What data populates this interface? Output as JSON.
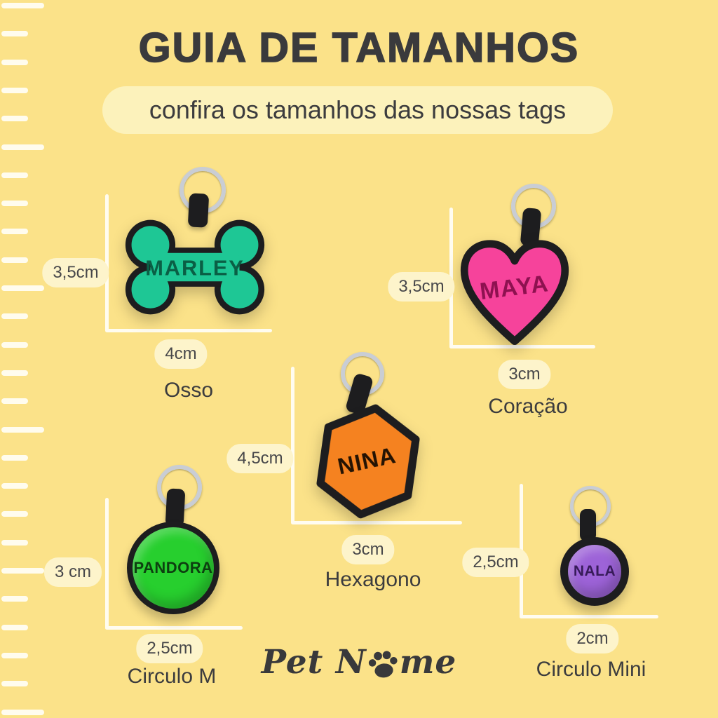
{
  "title": "GUIA DE TAMANHOS",
  "subtitle": "confira os tamanhos das nossas tags",
  "ruler": {
    "icon": "ruler-ticks",
    "tick_count": 26,
    "long_every": 5
  },
  "tags": [
    {
      "pet_name": "MARLEY",
      "shape_label": "Osso",
      "height_label": "3,5cm",
      "width_label": "4cm",
      "fill": "#1ec795",
      "name_color": "#0a5f45",
      "icon": "bone-tag"
    },
    {
      "pet_name": "MAYA",
      "shape_label": "Coração",
      "height_label": "3,5cm",
      "width_label": "3cm",
      "fill": "#f6439b",
      "name_color": "#8e1150",
      "icon": "heart-tag"
    },
    {
      "pet_name": "NINA",
      "shape_label": "Hexagono",
      "height_label": "4,5cm",
      "width_label": "3cm",
      "fill": "#f58220",
      "name_color": "#241303",
      "icon": "hexagon-tag"
    },
    {
      "pet_name": "PANDORA",
      "shape_label": "Circulo M",
      "height_label": "3 cm",
      "width_label": "2,5cm",
      "fill": "#27cf2e",
      "name_color": "#0d3f10",
      "icon": "circle-tag"
    },
    {
      "pet_name": "NALA",
      "shape_label": "Circulo Mini",
      "height_label": "2,5cm",
      "width_label": "2cm",
      "fill": "#9d63d8",
      "name_color": "#371b59",
      "icon": "circle-tag"
    }
  ],
  "brand": {
    "name_part1": "Pet N",
    "name_part2": "me",
    "paw_icon": "paw-print"
  },
  "colors": {
    "background": "#fbe289",
    "title": "#3a3a3c",
    "subtitle_pill": "#fcf2bb",
    "pill_bg": "#fdf4cb",
    "pill_text": "#47474a",
    "label_text": "#3c3c3e",
    "bracket": "#fffcf0",
    "ruler_tick": "#fffdf3",
    "outline": "#1d1d1f",
    "ring": "#c9cdd4",
    "logo": "#39393b"
  }
}
